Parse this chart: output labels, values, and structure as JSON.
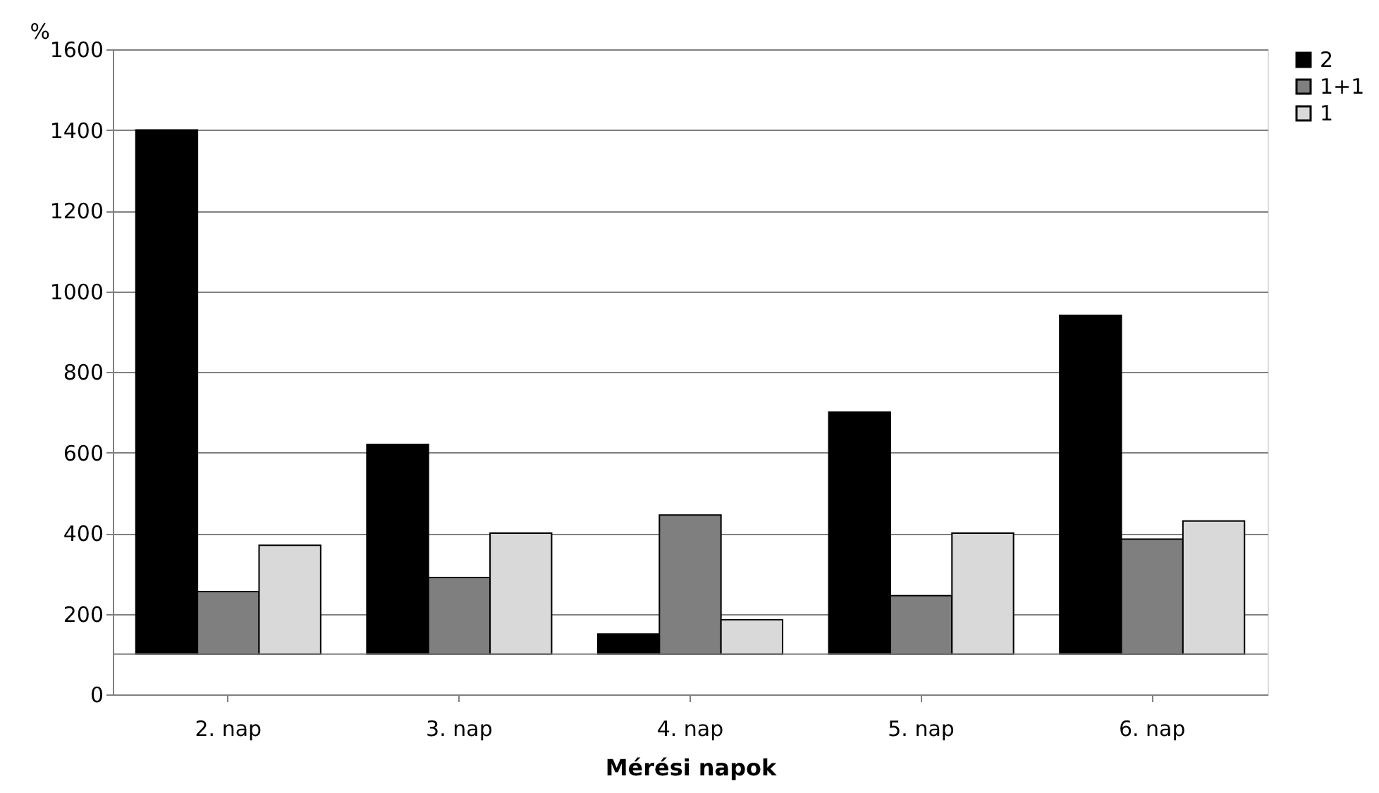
{
  "chart_data": {
    "type": "bar",
    "xlabel": "Mérési napok",
    "ylabel": "%",
    "categories": [
      "2. nap",
      "3. nap",
      "4. nap",
      "5. nap",
      "6. nap"
    ],
    "series": [
      {
        "name": "2",
        "color": "#000000",
        "base": [
          100,
          100,
          100,
          100,
          100
        ],
        "values": [
          1300,
          520,
          50,
          600,
          840
        ]
      },
      {
        "name": "1+1",
        "color": "#7f7f7f",
        "base": [
          100,
          100,
          100,
          100,
          100
        ],
        "values": [
          155,
          190,
          345,
          145,
          285
        ]
      },
      {
        "name": "1",
        "color": "#d9d9d9",
        "base": [
          100,
          100,
          100,
          100,
          100
        ],
        "values": [
          270,
          300,
          85,
          300,
          330
        ]
      }
    ],
    "ylim": [
      0,
      1600
    ],
    "yticks": [
      0,
      200,
      400,
      600,
      800,
      1000,
      1200,
      1400,
      1600
    ],
    "ref_lines": [
      {
        "axis": "y",
        "value": 100,
        "color": "#808080"
      }
    ],
    "grid": "y",
    "legend": "right"
  }
}
